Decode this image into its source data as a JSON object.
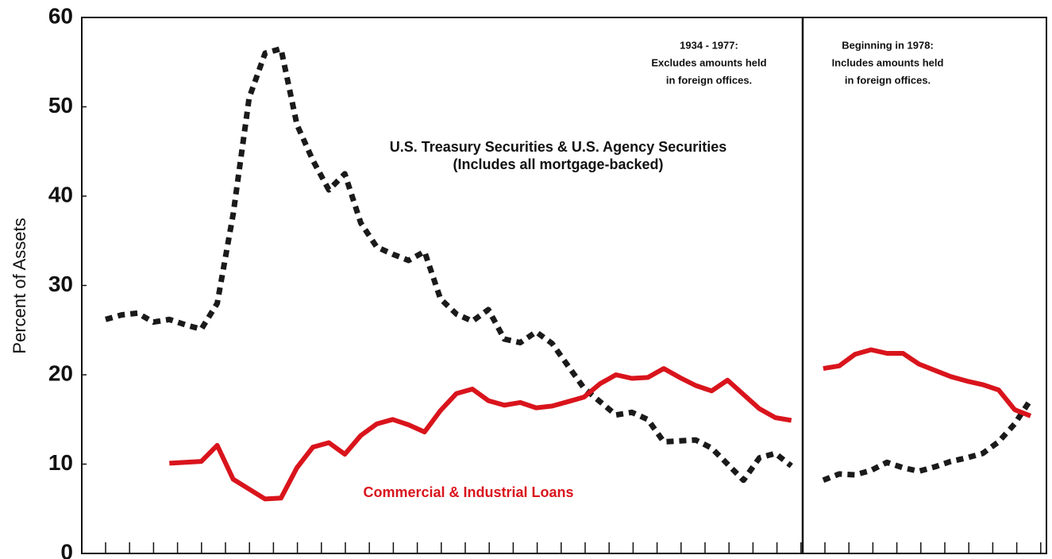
{
  "chart_data": {
    "type": "line",
    "ylabel": "Percent of Assets",
    "ylim": [
      0,
      60
    ],
    "yticks": [
      0,
      10,
      20,
      30,
      40,
      50,
      60
    ],
    "categories": [
      null,
      null,
      null,
      null,
      null,
      null,
      null,
      null,
      null,
      null,
      null,
      null,
      null,
      null,
      null,
      null,
      null,
      null,
      null,
      null,
      null,
      null,
      null,
      null,
      null,
      null,
      null,
      null,
      null,
      null,
      null,
      null,
      null,
      null,
      null,
      null,
      null,
      null,
      null,
      null,
      null,
      null,
      null,
      null,
      null,
      null,
      null,
      null,
      null,
      null,
      null,
      null,
      null,
      null,
      null,
      null,
      null,
      null,
      null
    ],
    "series": [
      {
        "name": [
          "U.S. Treasury Securities & U.S. Agency Securities",
          "(Includes all mortgage-backed)"
        ],
        "color": "#1a1a1a",
        "dashed": true,
        "values": [
          26.2,
          26.7,
          26.9,
          25.9,
          26.2,
          25.6,
          25.1,
          28,
          38,
          51,
          56,
          56.5,
          48,
          44,
          40.7,
          42.5,
          37,
          34.3,
          33.5,
          32.8,
          33.8,
          28.5,
          26.8,
          26,
          27.3,
          24,
          23.6,
          24.8,
          23.5,
          21,
          18.5,
          17,
          15.5,
          15.8,
          15,
          12.5,
          12.6,
          12.7,
          11.8,
          10,
          8.2,
          10.7,
          11.2,
          9.8,
          null,
          8.2,
          8.9,
          8.8,
          9.3,
          10.2,
          9.6,
          9.2,
          9.7,
          10.3,
          10.7,
          11.2,
          12.5,
          14.5,
          17.2
        ]
      },
      {
        "name": [
          "Commercial & Industrial Loans"
        ],
        "color": "#d9141c",
        "dashed": false,
        "values": [
          null,
          null,
          null,
          null,
          10.1,
          10.2,
          10.3,
          12.1,
          8.3,
          7.2,
          6.1,
          6.2,
          9.6,
          11.9,
          12.4,
          11.1,
          13.2,
          14.5,
          15,
          14.4,
          13.6,
          16,
          17.9,
          18.4,
          17.1,
          16.6,
          16.9,
          16.3,
          16.5,
          17,
          17.5,
          19,
          20,
          19.6,
          19.7,
          20.7,
          19.7,
          18.8,
          18.2,
          19.4,
          17.8,
          16.2,
          15.2,
          14.9,
          null,
          20.7,
          21,
          22.3,
          22.8,
          22.4,
          22.4,
          21.2,
          20.5,
          19.8,
          19.3,
          18.9,
          18.3,
          16.1,
          15.4
        ]
      }
    ],
    "annotations": [
      [
        "1934 - 1977:",
        "Excludes amounts held",
        "in foreign offices."
      ],
      [
        "Beginning in 1978:",
        "Includes amounts held",
        "in foreign offices."
      ]
    ]
  }
}
